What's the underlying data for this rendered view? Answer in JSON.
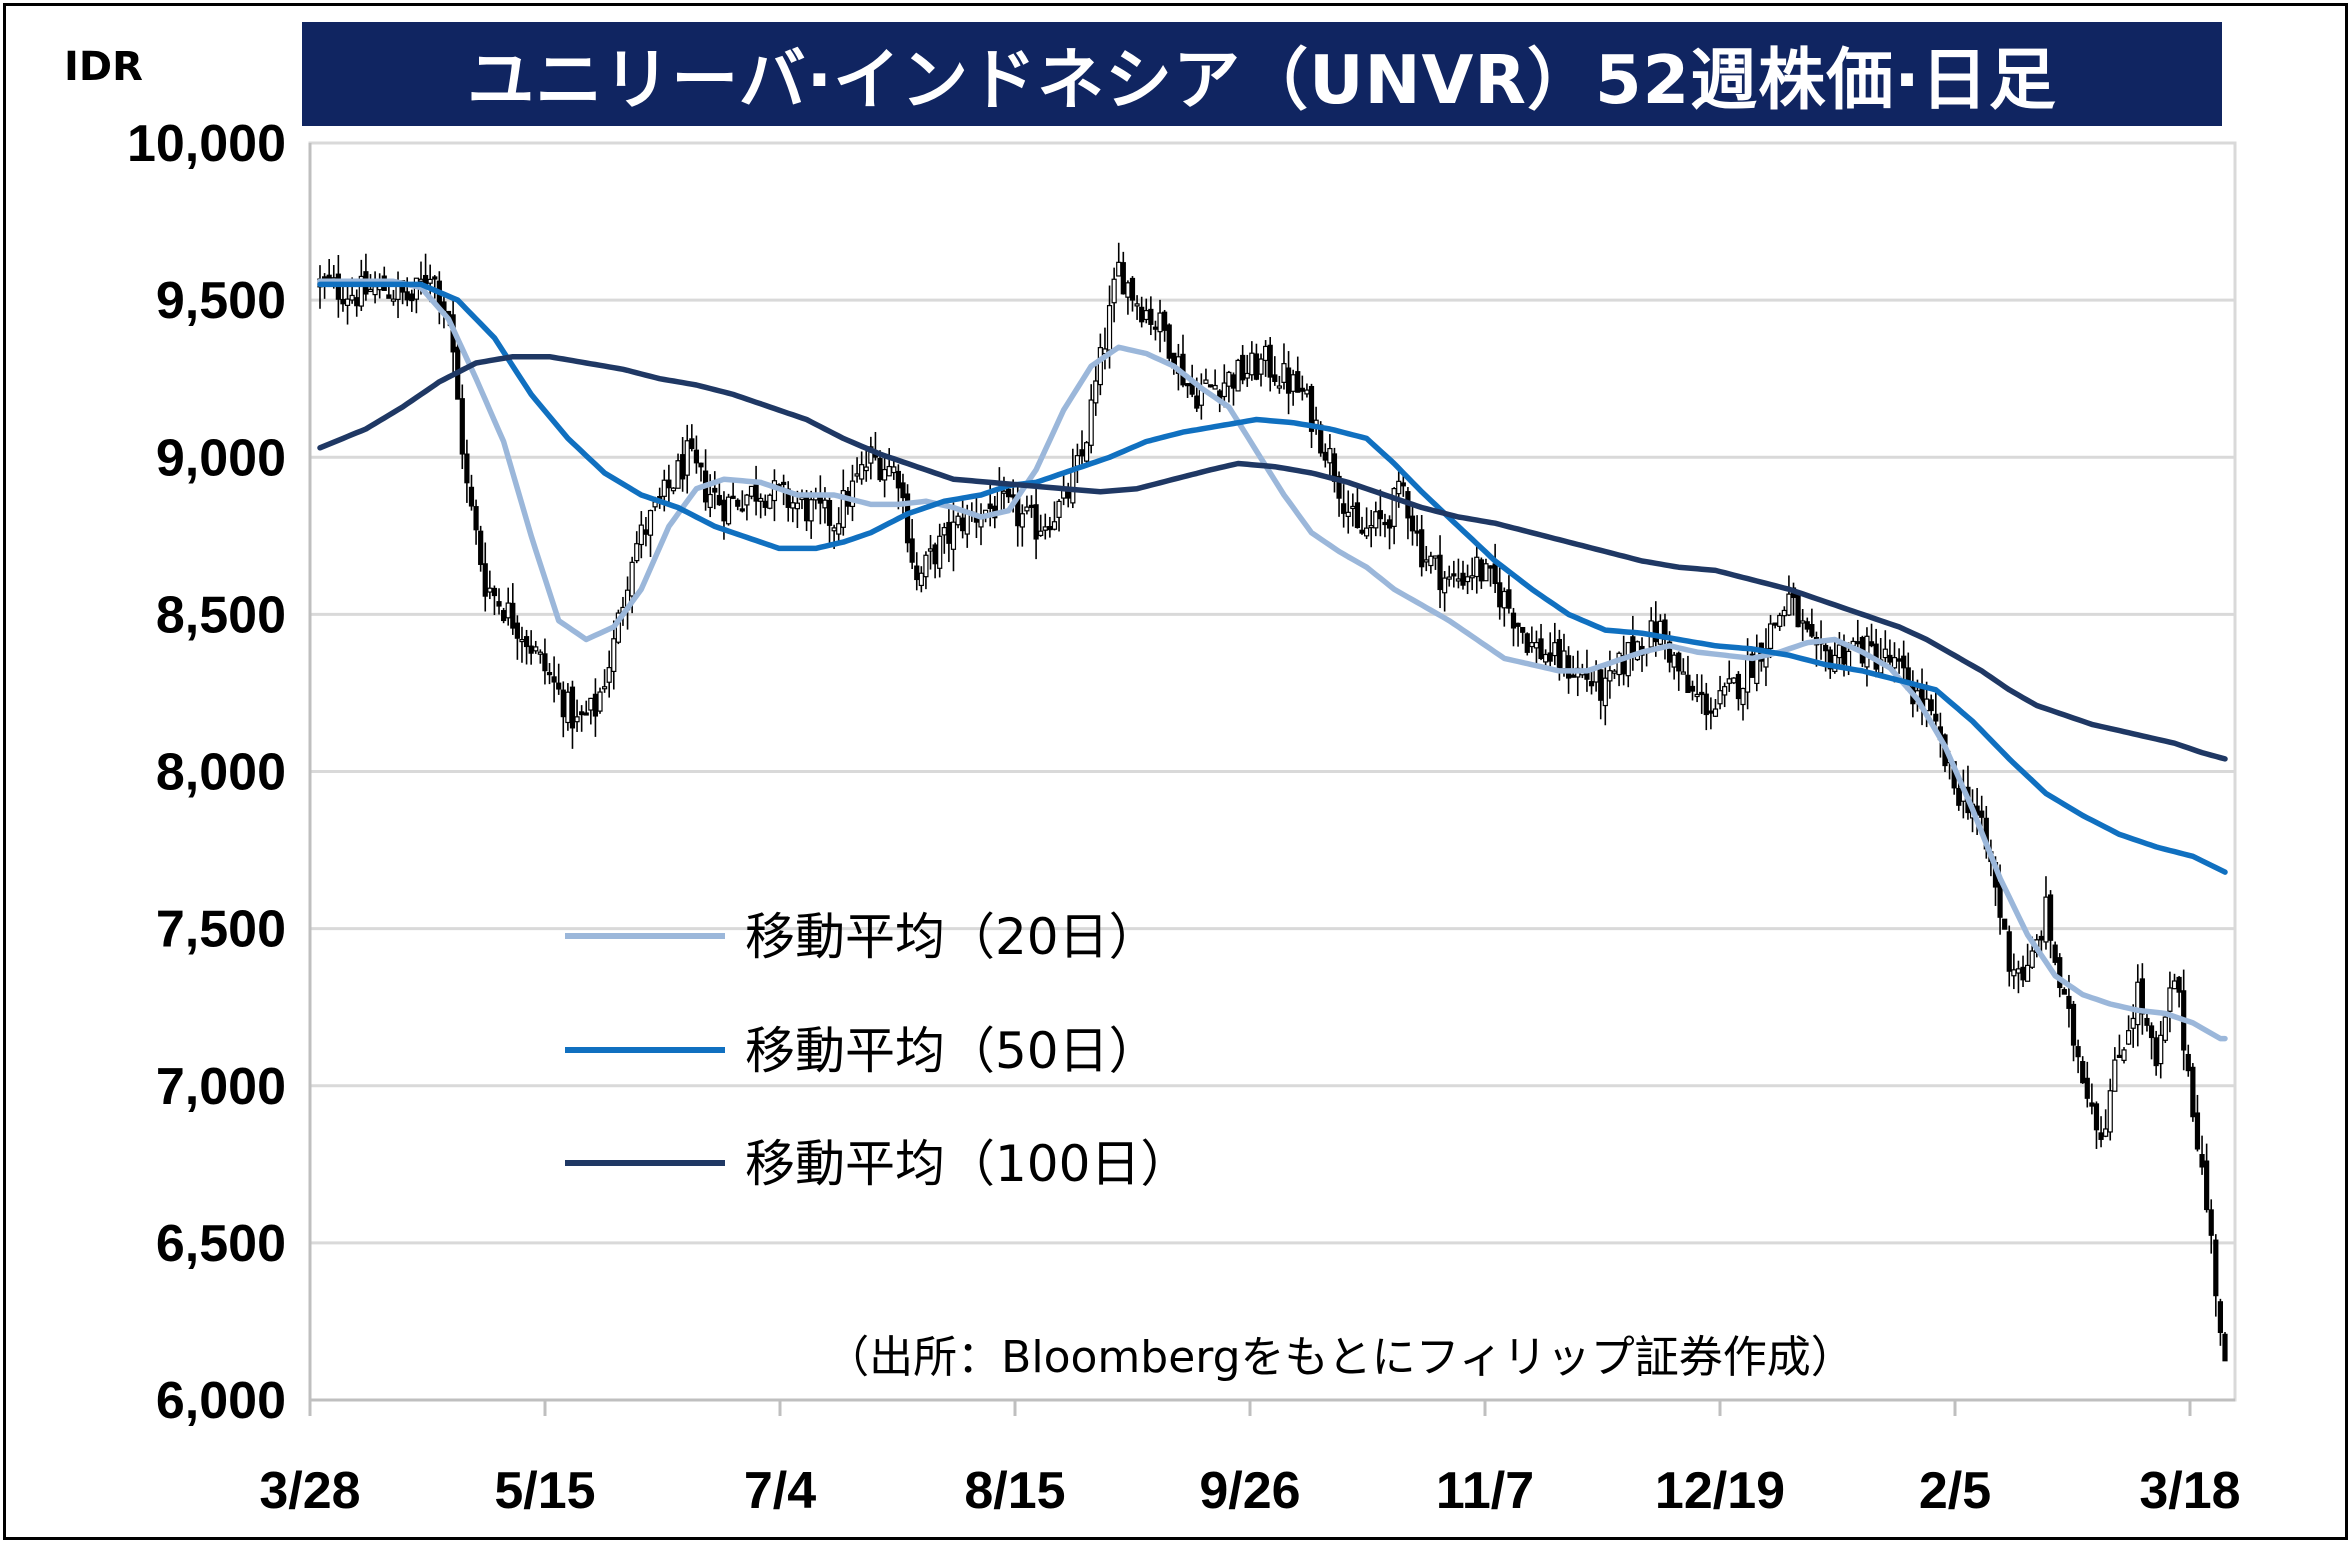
{
  "title": "ユニリーバ·インドネシア（UNVR）52週株価·日足",
  "unit_label": "IDR",
  "source": "（出所：Bloombergをもとにフィリップ証券作成）",
  "colors": {
    "title_bg": "#102561",
    "ma20": "#9bb7da",
    "ma50": "#1070c0",
    "ma100": "#1f3864",
    "candle": "#000000",
    "grid": "#d9d9d9"
  },
  "legend": [
    {
      "label": "移動平均（20日）",
      "color": "#9bb7da"
    },
    {
      "label": "移動平均（50日）",
      "color": "#1070c0"
    },
    {
      "label": "移動平均（100日）",
      "color": "#1f3864"
    }
  ],
  "chart_data": {
    "type": "candlestick",
    "title": "ユニリーバ·インドネシア（UNVR）52週株価·日足",
    "ylabel": "IDR",
    "ylim": [
      6000,
      10000
    ],
    "yticks": [
      6000,
      6500,
      7000,
      7500,
      8000,
      8500,
      9000,
      9500,
      10000
    ],
    "ytick_labels": [
      "6,000",
      "6,500",
      "7,000",
      "7,500",
      "8,000",
      "8,500",
      "9,000",
      "9,500",
      "10,000"
    ],
    "xticks": [
      "3/28",
      "5/15",
      "7/4",
      "8/15",
      "9/26",
      "11/7",
      "12/19",
      "2/5",
      "3/18"
    ],
    "grid": true,
    "legend_position": "center-left",
    "price_path": [
      [
        0,
        9550
      ],
      [
        8,
        9520
      ],
      [
        14,
        9540
      ],
      [
        20,
        9500
      ],
      [
        24,
        9600
      ],
      [
        28,
        9450
      ],
      [
        32,
        8900
      ],
      [
        36,
        8600
      ],
      [
        44,
        8450
      ],
      [
        50,
        8300
      ],
      [
        56,
        8150
      ],
      [
        60,
        8200
      ],
      [
        64,
        8400
      ],
      [
        68,
        8700
      ],
      [
        72,
        8800
      ],
      [
        76,
        8900
      ],
      [
        80,
        9000
      ],
      [
        84,
        8900
      ],
      [
        88,
        8850
      ],
      [
        96,
        8900
      ],
      [
        104,
        8850
      ],
      [
        112,
        8800
      ],
      [
        120,
        9000
      ],
      [
        126,
        8950
      ],
      [
        130,
        8600
      ],
      [
        134,
        8700
      ],
      [
        140,
        8800
      ],
      [
        148,
        8850
      ],
      [
        156,
        8780
      ],
      [
        162,
        8850
      ],
      [
        166,
        9000
      ],
      [
        170,
        9300
      ],
      [
        174,
        9600
      ],
      [
        178,
        9500
      ],
      [
        184,
        9400
      ],
      [
        190,
        9200
      ],
      [
        198,
        9250
      ],
      [
        206,
        9300
      ],
      [
        214,
        9200
      ],
      [
        220,
        9000
      ],
      [
        226,
        8750
      ],
      [
        232,
        8800
      ],
      [
        236,
        8900
      ],
      [
        240,
        8700
      ],
      [
        246,
        8600
      ],
      [
        252,
        8650
      ],
      [
        258,
        8550
      ],
      [
        264,
        8400
      ],
      [
        270,
        8350
      ],
      [
        276,
        8300
      ],
      [
        280,
        8250
      ],
      [
        286,
        8400
      ],
      [
        292,
        8450
      ],
      [
        298,
        8250
      ],
      [
        304,
        8200
      ],
      [
        310,
        8300
      ],
      [
        316,
        8450
      ],
      [
        320,
        8550
      ],
      [
        326,
        8350
      ],
      [
        334,
        8400
      ],
      [
        342,
        8350
      ],
      [
        350,
        8200
      ],
      [
        356,
        7950
      ],
      [
        360,
        7900
      ],
      [
        364,
        7700
      ],
      [
        368,
        7400
      ],
      [
        372,
        7350
      ],
      [
        376,
        7550
      ],
      [
        380,
        7250
      ],
      [
        384,
        7050
      ],
      [
        388,
        6850
      ],
      [
        392,
        7100
      ],
      [
        396,
        7300
      ],
      [
        400,
        7050
      ],
      [
        404,
        7350
      ],
      [
        408,
        6950
      ],
      [
        412,
        6500
      ],
      [
        415,
        6100
      ]
    ],
    "moving_averages": [
      {
        "name": "移動平均（20日）",
        "period": 20,
        "values": [
          [
            0,
            9560
          ],
          [
            8,
            9560
          ],
          [
            16,
            9560
          ],
          [
            22,
            9540
          ],
          [
            28,
            9440
          ],
          [
            34,
            9250
          ],
          [
            40,
            9050
          ],
          [
            46,
            8750
          ],
          [
            52,
            8480
          ],
          [
            58,
            8420
          ],
          [
            64,
            8460
          ],
          [
            70,
            8580
          ],
          [
            76,
            8780
          ],
          [
            82,
            8900
          ],
          [
            88,
            8930
          ],
          [
            96,
            8920
          ],
          [
            104,
            8880
          ],
          [
            112,
            8880
          ],
          [
            120,
            8850
          ],
          [
            126,
            8850
          ],
          [
            132,
            8860
          ],
          [
            138,
            8840
          ],
          [
            144,
            8810
          ],
          [
            150,
            8830
          ],
          [
            156,
            8960
          ],
          [
            162,
            9150
          ],
          [
            168,
            9290
          ],
          [
            174,
            9350
          ],
          [
            180,
            9330
          ],
          [
            186,
            9290
          ],
          [
            192,
            9220
          ],
          [
            198,
            9160
          ],
          [
            204,
            9020
          ],
          [
            210,
            8880
          ],
          [
            216,
            8760
          ],
          [
            222,
            8700
          ],
          [
            228,
            8650
          ],
          [
            234,
            8580
          ],
          [
            240,
            8530
          ],
          [
            246,
            8480
          ],
          [
            252,
            8420
          ],
          [
            258,
            8360
          ],
          [
            264,
            8340
          ],
          [
            270,
            8320
          ],
          [
            276,
            8320
          ],
          [
            282,
            8350
          ],
          [
            288,
            8380
          ],
          [
            294,
            8400
          ],
          [
            300,
            8380
          ],
          [
            306,
            8370
          ],
          [
            312,
            8360
          ],
          [
            318,
            8380
          ],
          [
            324,
            8410
          ],
          [
            330,
            8420
          ],
          [
            336,
            8380
          ],
          [
            342,
            8330
          ],
          [
            348,
            8230
          ],
          [
            354,
            8080
          ],
          [
            360,
            7880
          ],
          [
            366,
            7660
          ],
          [
            372,
            7480
          ],
          [
            378,
            7350
          ],
          [
            384,
            7290
          ],
          [
            390,
            7260
          ],
          [
            396,
            7240
          ],
          [
            402,
            7230
          ],
          [
            408,
            7200
          ],
          [
            414,
            7150
          ]
        ]
      },
      {
        "name": "移動平均（50日）",
        "period": 50,
        "values": [
          [
            0,
            9550
          ],
          [
            12,
            9550
          ],
          [
            22,
            9550
          ],
          [
            30,
            9500
          ],
          [
            38,
            9380
          ],
          [
            46,
            9200
          ],
          [
            54,
            9060
          ],
          [
            62,
            8950
          ],
          [
            70,
            8880
          ],
          [
            78,
            8840
          ],
          [
            86,
            8780
          ],
          [
            94,
            8740
          ],
          [
            100,
            8710
          ],
          [
            108,
            8710
          ],
          [
            114,
            8730
          ],
          [
            120,
            8760
          ],
          [
            128,
            8820
          ],
          [
            136,
            8860
          ],
          [
            144,
            8880
          ],
          [
            150,
            8910
          ],
          [
            156,
            8920
          ],
          [
            164,
            8960
          ],
          [
            172,
            9000
          ],
          [
            180,
            9050
          ],
          [
            188,
            9080
          ],
          [
            196,
            9100
          ],
          [
            204,
            9120
          ],
          [
            212,
            9110
          ],
          [
            220,
            9090
          ],
          [
            228,
            9060
          ],
          [
            234,
            8980
          ],
          [
            240,
            8890
          ],
          [
            248,
            8780
          ],
          [
            256,
            8670
          ],
          [
            264,
            8580
          ],
          [
            272,
            8500
          ],
          [
            280,
            8450
          ],
          [
            288,
            8440
          ],
          [
            296,
            8420
          ],
          [
            304,
            8400
          ],
          [
            312,
            8390
          ],
          [
            320,
            8370
          ],
          [
            328,
            8340
          ],
          [
            336,
            8320
          ],
          [
            344,
            8290
          ],
          [
            352,
            8260
          ],
          [
            360,
            8160
          ],
          [
            368,
            8040
          ],
          [
            376,
            7930
          ],
          [
            384,
            7860
          ],
          [
            392,
            7800
          ],
          [
            400,
            7760
          ],
          [
            408,
            7730
          ],
          [
            415,
            7680
          ]
        ]
      },
      {
        "name": "移動平均（100日）",
        "period": 100,
        "values": [
          [
            0,
            9030
          ],
          [
            10,
            9090
          ],
          [
            18,
            9160
          ],
          [
            26,
            9240
          ],
          [
            34,
            9300
          ],
          [
            42,
            9320
          ],
          [
            50,
            9320
          ],
          [
            58,
            9300
          ],
          [
            66,
            9280
          ],
          [
            74,
            9250
          ],
          [
            82,
            9230
          ],
          [
            90,
            9200
          ],
          [
            98,
            9160
          ],
          [
            106,
            9120
          ],
          [
            114,
            9060
          ],
          [
            122,
            9010
          ],
          [
            130,
            8970
          ],
          [
            138,
            8930
          ],
          [
            146,
            8920
          ],
          [
            154,
            8910
          ],
          [
            162,
            8900
          ],
          [
            170,
            8890
          ],
          [
            178,
            8900
          ],
          [
            186,
            8930
          ],
          [
            194,
            8960
          ],
          [
            200,
            8980
          ],
          [
            208,
            8970
          ],
          [
            216,
            8950
          ],
          [
            224,
            8920
          ],
          [
            232,
            8880
          ],
          [
            240,
            8840
          ],
          [
            248,
            8810
          ],
          [
            256,
            8790
          ],
          [
            264,
            8760
          ],
          [
            272,
            8730
          ],
          [
            280,
            8700
          ],
          [
            288,
            8670
          ],
          [
            296,
            8650
          ],
          [
            304,
            8640
          ],
          [
            312,
            8610
          ],
          [
            320,
            8580
          ],
          [
            328,
            8540
          ],
          [
            336,
            8500
          ],
          [
            344,
            8460
          ],
          [
            350,
            8420
          ],
          [
            356,
            8370
          ],
          [
            362,
            8320
          ],
          [
            368,
            8260
          ],
          [
            374,
            8210
          ],
          [
            380,
            8180
          ],
          [
            386,
            8150
          ],
          [
            392,
            8130
          ],
          [
            398,
            8110
          ],
          [
            404,
            8090
          ],
          [
            410,
            8060
          ],
          [
            415,
            8040
          ]
        ]
      }
    ]
  }
}
